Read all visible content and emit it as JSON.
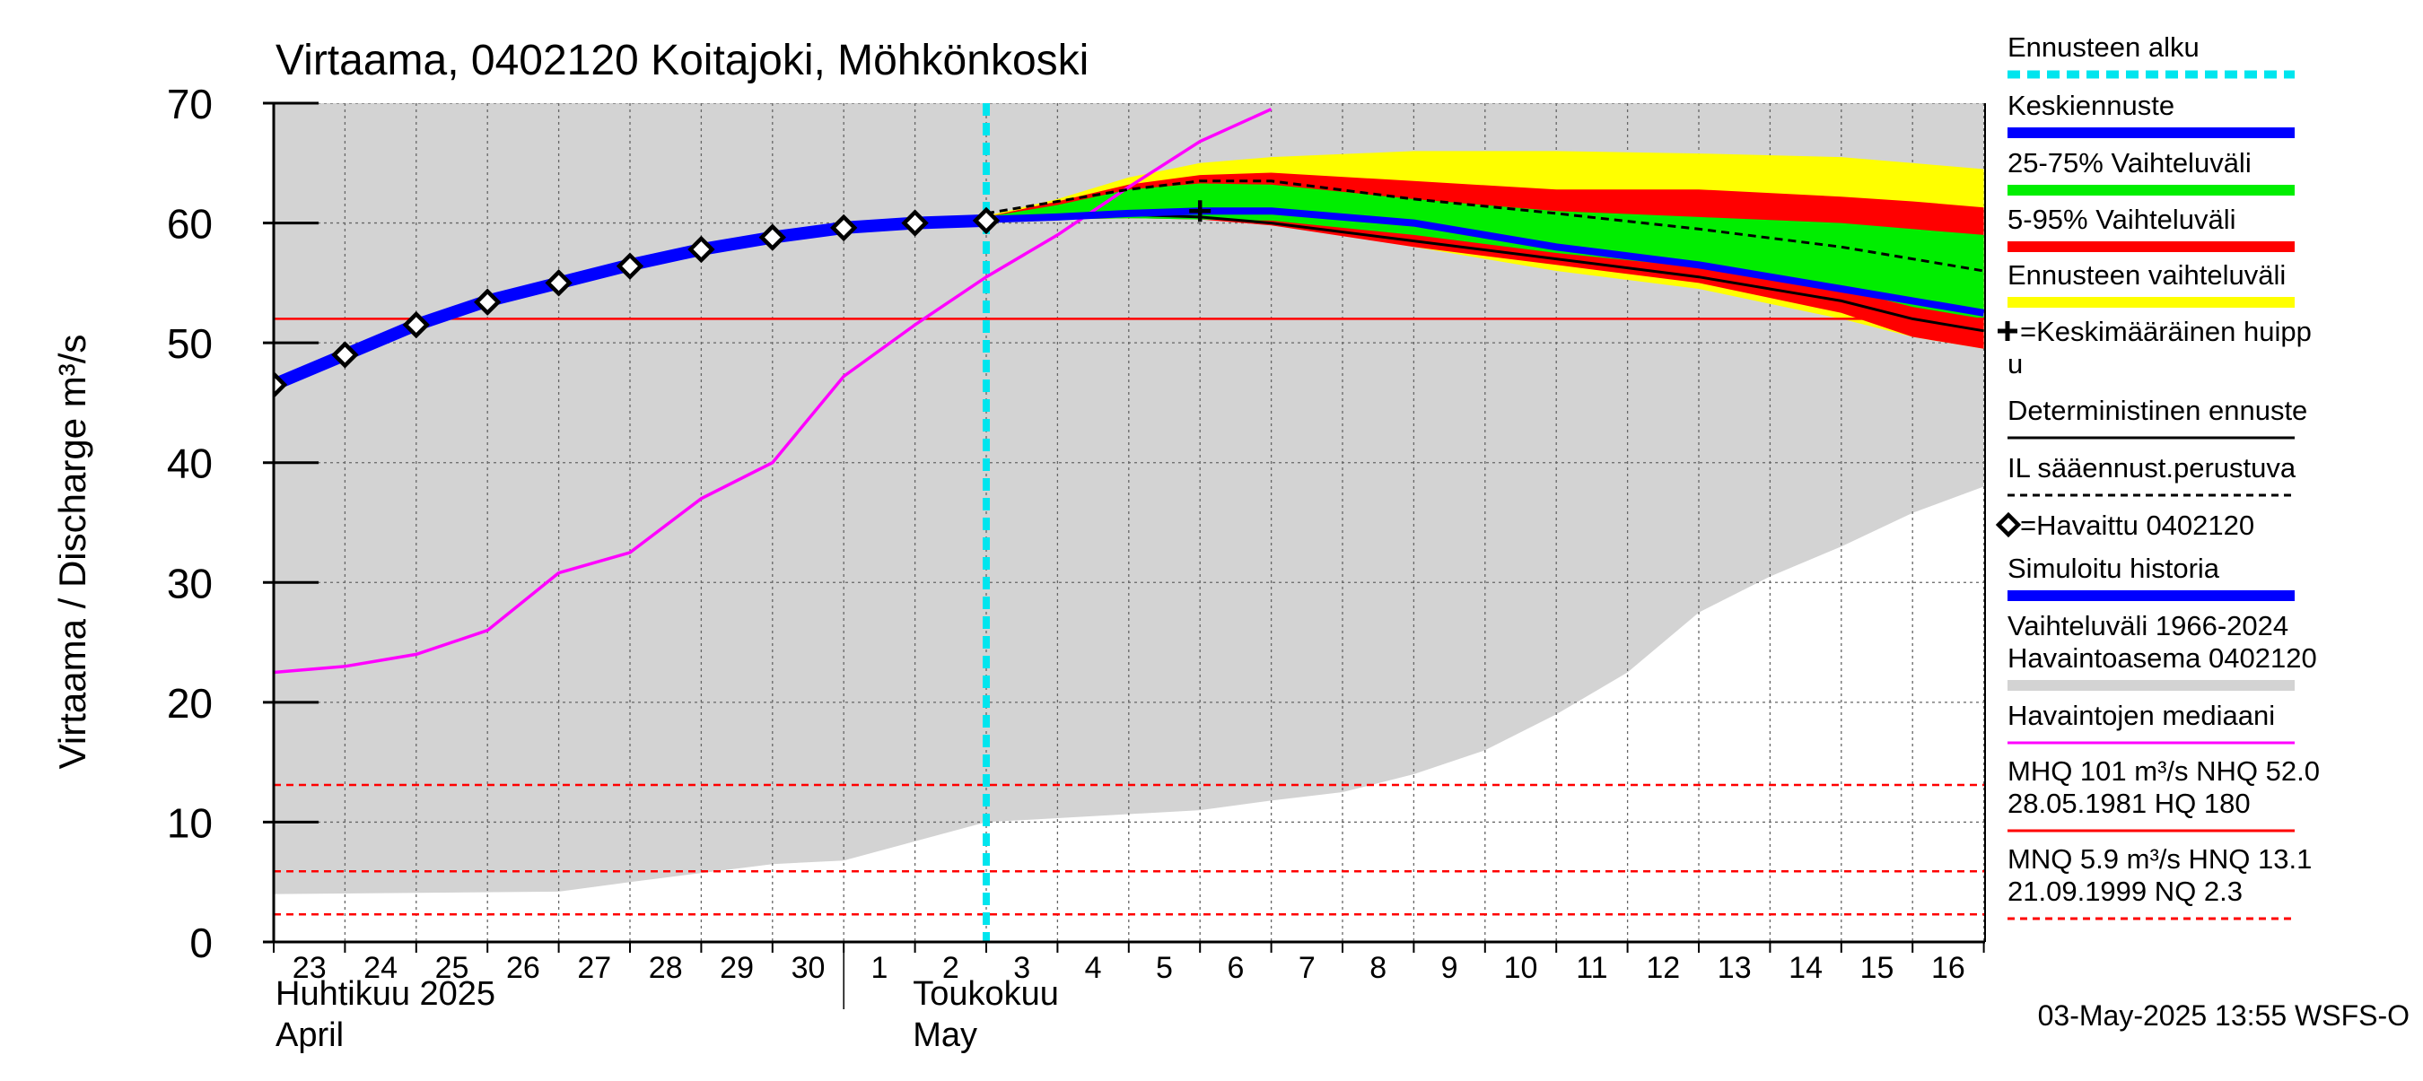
{
  "chart_data": {
    "type": "area",
    "title": "Virtaama, 0402120 Koitajoki, Möhkönkoski",
    "ylabel": "Virtaama / Discharge   m³/s",
    "ylim": [
      0,
      70
    ],
    "yticks": [
      0,
      10,
      20,
      30,
      40,
      50,
      60,
      70
    ],
    "x_dates": [
      "2025-04-23",
      "2025-04-24",
      "2025-04-25",
      "2025-04-26",
      "2025-04-27",
      "2025-04-28",
      "2025-04-29",
      "2025-04-30",
      "2025-05-01",
      "2025-05-02",
      "2025-05-03",
      "2025-05-04",
      "2025-05-05",
      "2025-05-06",
      "2025-05-07",
      "2025-05-08",
      "2025-05-09",
      "2025-05-10",
      "2025-05-11",
      "2025-05-12",
      "2025-05-13",
      "2025-05-14",
      "2025-05-15",
      "2025-05-16"
    ],
    "x_tick_labels": [
      "23",
      "24",
      "25",
      "26",
      "27",
      "28",
      "29",
      "30",
      "1",
      "2",
      "3",
      "4",
      "5",
      "6",
      "7",
      "8",
      "9",
      "10",
      "11",
      "12",
      "13",
      "14",
      "15",
      "16"
    ],
    "month_labels": [
      {
        "fi": "Huhtikuu  2025",
        "en": "April"
      },
      {
        "fi": "Toukokuu",
        "en": "May"
      }
    ],
    "forecast_start": "2025-05-03",
    "history_band": {
      "name": "Vaihteluväli 1966-2024 Havaintoasema 0402120",
      "color": "#d3d3d3",
      "dates": [
        "2025-04-23",
        "2025-04-27",
        "2025-04-28",
        "2025-04-30",
        "2025-05-01",
        "2025-05-03",
        "2025-05-06",
        "2025-05-07",
        "2025-05-08",
        "2025-05-09",
        "2025-05-10",
        "2025-05-11",
        "2025-05-12",
        "2025-05-13",
        "2025-05-14",
        "2025-05-15",
        "2025-05-16",
        "2025-05-17"
      ],
      "low": [
        4.0,
        4.2,
        5.0,
        6.5,
        6.8,
        10.0,
        11.0,
        11.8,
        12.5,
        14.0,
        16.0,
        19.0,
        22.5,
        27.5,
        30.5,
        33.0,
        35.8,
        38.0
      ],
      "high": [
        70,
        70,
        70,
        70,
        70,
        70,
        70,
        70,
        70,
        70,
        70,
        70,
        70,
        70,
        70,
        70,
        70,
        70
      ]
    },
    "forecast_range": {
      "name": "Ennusteen vaihteluväli",
      "color": "#ffff00",
      "dates": [
        "2025-05-03",
        "2025-05-04",
        "2025-05-05",
        "2025-05-06",
        "2025-05-07",
        "2025-05-09",
        "2025-05-11",
        "2025-05-13",
        "2025-05-15",
        "2025-05-16",
        "2025-05-17"
      ],
      "low": [
        60.2,
        60.3,
        60.4,
        60.5,
        60.0,
        58.0,
        56.0,
        54.5,
        52.0,
        50.5,
        49.5
      ],
      "high": [
        60.6,
        62.0,
        63.8,
        65.0,
        65.5,
        66.0,
        66.0,
        65.8,
        65.5,
        65.0,
        64.5
      ]
    },
    "band_5_95": {
      "name": "5-95% Vaihteluväli",
      "color": "#ff0000",
      "dates": [
        "2025-05-03",
        "2025-05-04",
        "2025-05-05",
        "2025-05-06",
        "2025-05-07",
        "2025-05-09",
        "2025-05-11",
        "2025-05-13",
        "2025-05-15",
        "2025-05-16",
        "2025-05-17"
      ],
      "low": [
        60.2,
        60.3,
        60.4,
        60.3,
        59.8,
        58.0,
        56.5,
        55.0,
        52.5,
        50.5,
        49.5
      ],
      "high": [
        60.5,
        61.8,
        63.2,
        64.0,
        64.2,
        63.5,
        62.8,
        62.8,
        62.2,
        61.8,
        61.3
      ]
    },
    "band_25_75": {
      "name": "25-75% Vaihteluväli",
      "color": "#00ee00",
      "dates": [
        "2025-05-03",
        "2025-05-04",
        "2025-05-05",
        "2025-05-06",
        "2025-05-07",
        "2025-05-09",
        "2025-05-11",
        "2025-05-13",
        "2025-05-15",
        "2025-05-16",
        "2025-05-17"
      ],
      "low": [
        60.2,
        60.3,
        60.4,
        60.3,
        60.2,
        59.0,
        57.5,
        56.3,
        54.5,
        53.0,
        52.0
      ],
      "high": [
        60.5,
        61.5,
        62.8,
        63.3,
        63.2,
        62.0,
        61.0,
        60.5,
        60.0,
        59.5,
        59.0
      ]
    },
    "mean_forecast": {
      "name": "Keskiennuste",
      "color": "#0000ff",
      "dates": [
        "2025-05-03",
        "2025-05-04",
        "2025-05-05",
        "2025-05-06",
        "2025-05-07",
        "2025-05-09",
        "2025-05-11",
        "2025-05-13",
        "2025-05-15",
        "2025-05-16",
        "2025-05-17"
      ],
      "values": [
        60.3,
        60.5,
        60.8,
        61.0,
        61.0,
        60.0,
        58.0,
        56.5,
        54.5,
        53.5,
        52.5
      ]
    },
    "deterministic_forecast": {
      "name": "Deterministinen ennuste",
      "color": "#000000",
      "dates": [
        "2025-05-03",
        "2025-05-04",
        "2025-05-05",
        "2025-05-06",
        "2025-05-07",
        "2025-05-09",
        "2025-05-11",
        "2025-05-13",
        "2025-05-15",
        "2025-05-16",
        "2025-05-17"
      ],
      "values": [
        60.3,
        60.5,
        60.7,
        60.5,
        60.0,
        58.5,
        57.0,
        55.5,
        53.5,
        52.0,
        51.0
      ]
    },
    "il_forecast": {
      "name": "IL sääennust.perustuva",
      "color": "#000000",
      "dates": [
        "2025-05-03",
        "2025-05-04",
        "2025-05-05",
        "2025-05-06",
        "2025-05-07",
        "2025-05-09",
        "2025-05-11",
        "2025-05-13",
        "2025-05-15",
        "2025-05-16",
        "2025-05-17"
      ],
      "values": [
        60.8,
        61.8,
        62.8,
        63.5,
        63.5,
        62.0,
        60.8,
        59.5,
        58.0,
        57.0,
        56.0
      ]
    },
    "simulated_history": {
      "name": "Simuloitu historia",
      "color": "#0000ff",
      "dates": [
        "2025-04-23",
        "2025-04-24",
        "2025-04-25",
        "2025-04-26",
        "2025-04-27",
        "2025-04-28",
        "2025-04-29",
        "2025-04-30",
        "2025-05-01",
        "2025-05-02",
        "2025-05-03"
      ],
      "values": [
        46.5,
        49.0,
        51.5,
        53.5,
        55.0,
        56.5,
        57.8,
        58.8,
        59.6,
        60.0,
        60.2
      ]
    },
    "observed": {
      "name": "=Havaittu 0402120",
      "color": "#000000",
      "dates": [
        "2025-04-23",
        "2025-04-24",
        "2025-04-25",
        "2025-04-26",
        "2025-04-27",
        "2025-04-28",
        "2025-04-29",
        "2025-04-30",
        "2025-05-01",
        "2025-05-02",
        "2025-05-03"
      ],
      "values": [
        46.5,
        49.0,
        51.5,
        53.4,
        55.0,
        56.4,
        57.8,
        58.8,
        59.6,
        60.0,
        60.2
      ]
    },
    "observed_median": {
      "name": "Havaintojen mediaani",
      "color": "#ff00ff",
      "dates": [
        "2025-04-23",
        "2025-04-24",
        "2025-04-25",
        "2025-04-26",
        "2025-04-27",
        "2025-04-28",
        "2025-04-29",
        "2025-04-30",
        "2025-05-01",
        "2025-05-02",
        "2025-05-03",
        "2025-05-04",
        "2025-05-05",
        "2025-05-06",
        "2025-05-07"
      ],
      "values": [
        22.5,
        23.0,
        24.0,
        26.0,
        30.8,
        32.5,
        37.0,
        40.0,
        47.2,
        51.5,
        55.5,
        59.0,
        63.0,
        66.8,
        69.5
      ]
    },
    "mean_peak": {
      "name": "=Keskimääräinen huippu",
      "date": "2025-05-06",
      "value": 61.0
    },
    "reference_lines": [
      {
        "name": "NHQ",
        "value": 52.0,
        "style": "solid",
        "color": "#ff0000"
      },
      {
        "name": "HNQ",
        "value": 13.1,
        "style": "dashed",
        "color": "#ff0000"
      },
      {
        "name": "MNQ",
        "value": 5.9,
        "style": "dashed",
        "color": "#ff0000"
      },
      {
        "name": "NQ",
        "value": 2.3,
        "style": "dashed",
        "color": "#ff0000"
      }
    ],
    "legend": [
      {
        "label": "Ennusteen alku",
        "color": "#00e5ee",
        "style": "dashed-thick"
      },
      {
        "label": "Keskiennuste",
        "color": "#0000ff",
        "style": "line-thick"
      },
      {
        "label": "25-75% Vaihteluväli",
        "color": "#00ee00",
        "style": "line-thick"
      },
      {
        "label": "5-95% Vaihteluväli",
        "color": "#ff0000",
        "style": "line-thick"
      },
      {
        "label": "Ennusteen vaihteluväli",
        "color": "#ffff00",
        "style": "line-thick"
      },
      {
        "label": "=Keskimääräinen huipp",
        "label2": "u",
        "color": "#000000",
        "style": "plus"
      },
      {
        "label": "Deterministinen ennuste",
        "color": "#000000",
        "style": "line"
      },
      {
        "label": "IL sääennust.perustuva",
        "color": "#000000",
        "style": "dashed"
      },
      {
        "label": "=Havaittu 0402120",
        "color": "#000000",
        "style": "diamond"
      },
      {
        "label": "Simuloitu historia",
        "color": "#0000ff",
        "style": "line-thick"
      },
      {
        "label": "Vaihteluväli 1966-2024",
        "label2": " Havaintoasema 0402120",
        "color": "#d3d3d3",
        "style": "line-thick"
      },
      {
        "label": "Havaintojen mediaani",
        "color": "#ff00ff",
        "style": "line"
      },
      {
        "label": "MHQ  101 m³/s NHQ 52.0",
        "label2": "28.05.1981 HQ  180",
        "color": "#ff0000",
        "style": "line"
      },
      {
        "label": "MNQ  5.9 m³/s HNQ 13.1",
        "label2": "21.09.1999 NQ  2.3",
        "color": "#ff0000",
        "style": "dashed"
      }
    ],
    "grid": true,
    "legend_position": "right"
  },
  "timestamp": "03-May-2025 13:55 WSFS-O"
}
